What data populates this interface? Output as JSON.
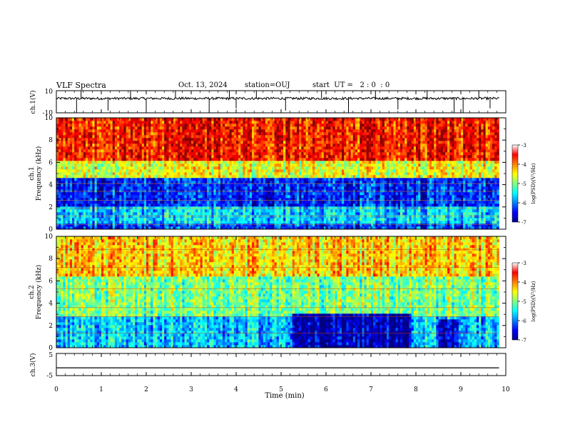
{
  "header": {
    "title": "VLF Spectra",
    "date": "Oct. 13, 2024",
    "station": "station=OUJ",
    "start": "start  UT =   2 : 0  : 0"
  },
  "chart_data": [
    {
      "type": "line",
      "ylabel": "ch.1(V)",
      "ylim": [
        -10,
        10
      ],
      "y_ticks": [
        "10",
        "-10"
      ],
      "baseline": 3,
      "spikes": [
        {
          "t": 0.45,
          "v": -10
        },
        {
          "t": 0.55,
          "v": 10
        },
        {
          "t": 1.15,
          "v": -8
        },
        {
          "t": 1.65,
          "v": 10
        },
        {
          "t": 2.0,
          "v": -10
        },
        {
          "t": 2.65,
          "v": 10
        },
        {
          "t": 3.4,
          "v": -10
        },
        {
          "t": 3.85,
          "v": 10
        },
        {
          "t": 4.0,
          "v": -6
        },
        {
          "t": 4.45,
          "v": 10
        },
        {
          "t": 5.1,
          "v": -8
        },
        {
          "t": 5.9,
          "v": 10
        },
        {
          "t": 6.5,
          "v": -10
        },
        {
          "t": 7.1,
          "v": 10
        },
        {
          "t": 7.6,
          "v": -7
        },
        {
          "t": 8.25,
          "v": 10
        },
        {
          "t": 8.85,
          "v": -10
        },
        {
          "t": 9.05,
          "v": -10
        },
        {
          "t": 9.4,
          "v": 10
        },
        {
          "t": 9.65,
          "v": -6
        }
      ]
    },
    {
      "type": "heatmap",
      "ylabel_channel": "ch.1",
      "ylabel": "Frequency (kHz)",
      "xlim": [
        0,
        10
      ],
      "ylim": [
        0,
        10
      ],
      "y_ticks": [
        "0",
        "2",
        "4",
        "6",
        "8",
        "10"
      ],
      "bands_khz": [
        {
          "f0": 0,
          "f1": 0.6,
          "level": -6.3
        },
        {
          "f0": 0.6,
          "f1": 2.0,
          "level": -5.7
        },
        {
          "f0": 2.0,
          "f1": 4.7,
          "level": -6.4
        },
        {
          "f0": 4.7,
          "f1": 6.2,
          "level": -4.6
        },
        {
          "f0": 6.2,
          "f1": 10,
          "level": -3.6
        }
      ],
      "colorbar": {
        "label": "log(PSD)(V²/Hz)",
        "range": [
          -7,
          -3
        ],
        "ticks": [
          "-3",
          "-4",
          "-5",
          "-6",
          "-7"
        ]
      }
    },
    {
      "type": "heatmap",
      "ylabel_channel": "ch.2",
      "ylabel": "Frequency (kHz)",
      "xlim": [
        0,
        10
      ],
      "ylim": [
        0,
        10
      ],
      "y_ticks": [
        "0",
        "2",
        "4",
        "6",
        "8",
        "10"
      ],
      "bands_khz": [
        {
          "f0": 0,
          "f1": 2.8,
          "level": -5.7
        },
        {
          "f0": 2.8,
          "f1": 6.5,
          "level": -5.0
        },
        {
          "f0": 6.5,
          "f1": 10,
          "level": -4.3
        }
      ],
      "quiet_intervals_min": [
        {
          "t0": 5.25,
          "t1": 7.9,
          "f1": 3.0,
          "level": -6.8
        },
        {
          "t0": 8.5,
          "t1": 8.95,
          "f1": 2.5,
          "level": -6.7
        }
      ],
      "colorbar": {
        "label": "log(PSD)(V²/Hz)",
        "range": [
          -7,
          -3
        ],
        "ticks": [
          "-3",
          "-4",
          "-5",
          "-6",
          "-7"
        ]
      }
    },
    {
      "type": "line",
      "ylabel": "ch.3(V)",
      "ylim": [
        -5,
        5
      ],
      "y_ticks": [
        "5",
        "-5"
      ],
      "baseline": -1.5
    }
  ],
  "x_axis": {
    "label": "Time (min)",
    "ticks": [
      "0",
      "1",
      "2",
      "3",
      "4",
      "5",
      "6",
      "7",
      "8",
      "9",
      "10"
    ]
  }
}
